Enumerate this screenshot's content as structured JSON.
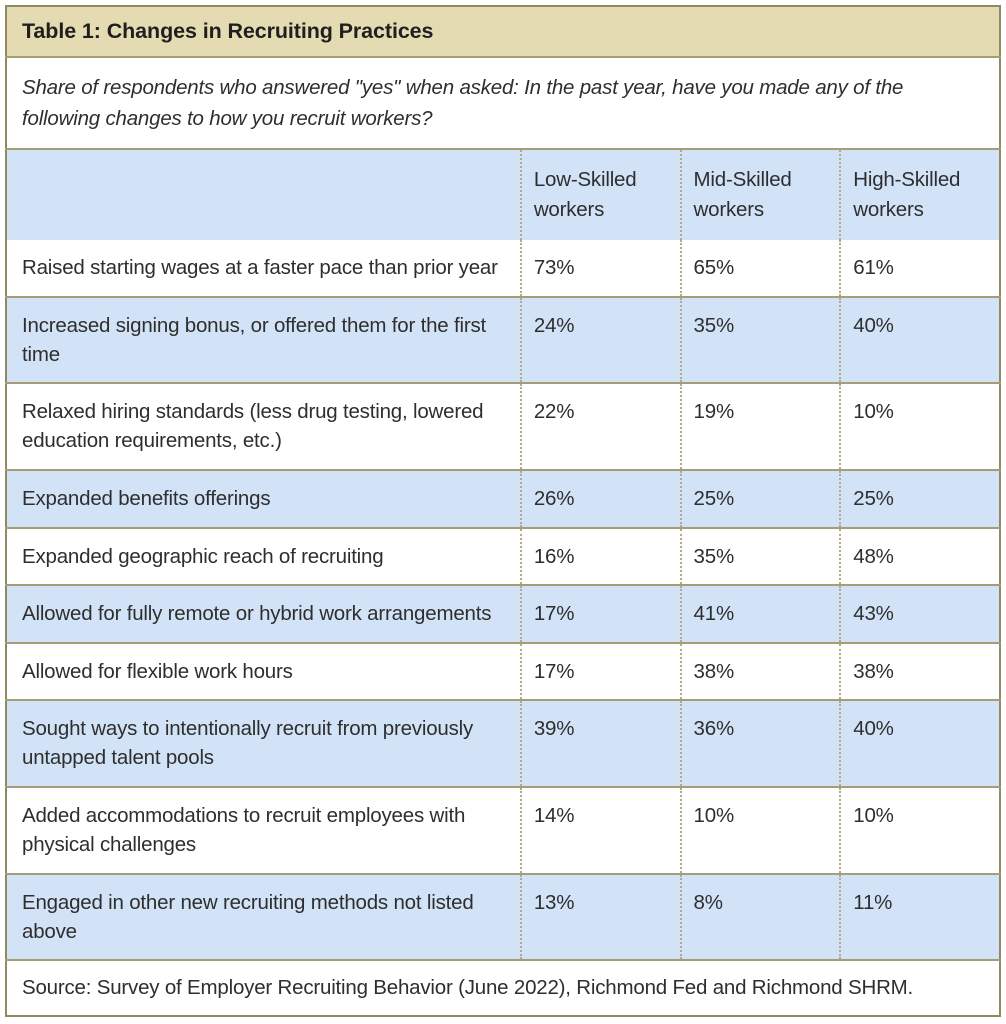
{
  "table": {
    "title": "Table 1: Changes in Recruiting Practices",
    "subtitle": "Share of respondents who answered \"yes\" when asked: In the past year, have you made any of the following changes to how you recruit workers?",
    "columns": [
      "",
      "Low-Skilled workers",
      "Mid-Skilled workers",
      "High-Skilled workers"
    ],
    "rows": [
      {
        "label": "Raised starting wages at a faster pace than prior year",
        "values": [
          "73%",
          "65%",
          "61%"
        ]
      },
      {
        "label": "Increased signing bonus, or offered them for the first time",
        "values": [
          "24%",
          "35%",
          "40%"
        ]
      },
      {
        "label": "Relaxed hiring standards (less drug testing, lowered education requirements, etc.)",
        "values": [
          "22%",
          "19%",
          "10%"
        ]
      },
      {
        "label": "Expanded benefits offerings",
        "values": [
          "26%",
          "25%",
          "25%"
        ]
      },
      {
        "label": "Expanded geographic reach of recruiting",
        "values": [
          "16%",
          "35%",
          "48%"
        ]
      },
      {
        "label": "Allowed for fully remote or hybrid work arrangements",
        "values": [
          "17%",
          "41%",
          "43%"
        ]
      },
      {
        "label": "Allowed for flexible work hours",
        "values": [
          "17%",
          "38%",
          "38%"
        ]
      },
      {
        "label": "Sought ways to intentionally recruit from previously untapped talent pools",
        "values": [
          "39%",
          "36%",
          "40%"
        ]
      },
      {
        "label": "Added accommodations to recruit employees with physical challenges",
        "values": [
          "14%",
          "10%",
          "10%"
        ]
      },
      {
        "label": "Engaged in other new recruiting methods not listed above",
        "values": [
          "13%",
          "8%",
          "11%"
        ]
      }
    ],
    "source": "Source: Survey of Employer Recruiting Behavior (June 2022), Richmond Fed and Richmond SHRM.",
    "colors": {
      "title_bg": "#e5dbb2",
      "stripe_bg": "#d2e3f8",
      "row_bg": "#ffffff",
      "border_solid": "#a49d77",
      "border_outer": "#8f8966",
      "border_dotted": "#b3ab82",
      "text": "#2e2e2e"
    }
  },
  "chart_data": {
    "type": "table",
    "title": "Table 1: Changes in Recruiting Practices",
    "subtitle": "Share of respondents who answered \"yes\" when asked: In the past year, have you made any of the following changes to how you recruit workers?",
    "categories": [
      "Raised starting wages at a faster pace than prior year",
      "Increased signing bonus, or offered them for the first time",
      "Relaxed hiring standards (less drug testing, lowered education requirements, etc.)",
      "Expanded benefits offerings",
      "Expanded geographic reach of recruiting",
      "Allowed for fully remote or hybrid work arrangements",
      "Allowed for flexible work hours",
      "Sought ways to intentionally recruit from previously untapped talent pools",
      "Added accommodations to recruit employees with physical challenges",
      "Engaged in other new recruiting methods not listed above"
    ],
    "series": [
      {
        "name": "Low-Skilled workers",
        "values": [
          73,
          24,
          22,
          26,
          16,
          17,
          17,
          39,
          14,
          13
        ]
      },
      {
        "name": "Mid-Skilled workers",
        "values": [
          65,
          35,
          19,
          25,
          35,
          41,
          38,
          36,
          10,
          8
        ]
      },
      {
        "name": "High-Skilled workers",
        "values": [
          61,
          40,
          10,
          25,
          48,
          43,
          38,
          40,
          10,
          11
        ]
      }
    ],
    "unit": "%",
    "source": "Source: Survey of Employer Recruiting Behavior (June 2022), Richmond Fed and Richmond SHRM."
  }
}
